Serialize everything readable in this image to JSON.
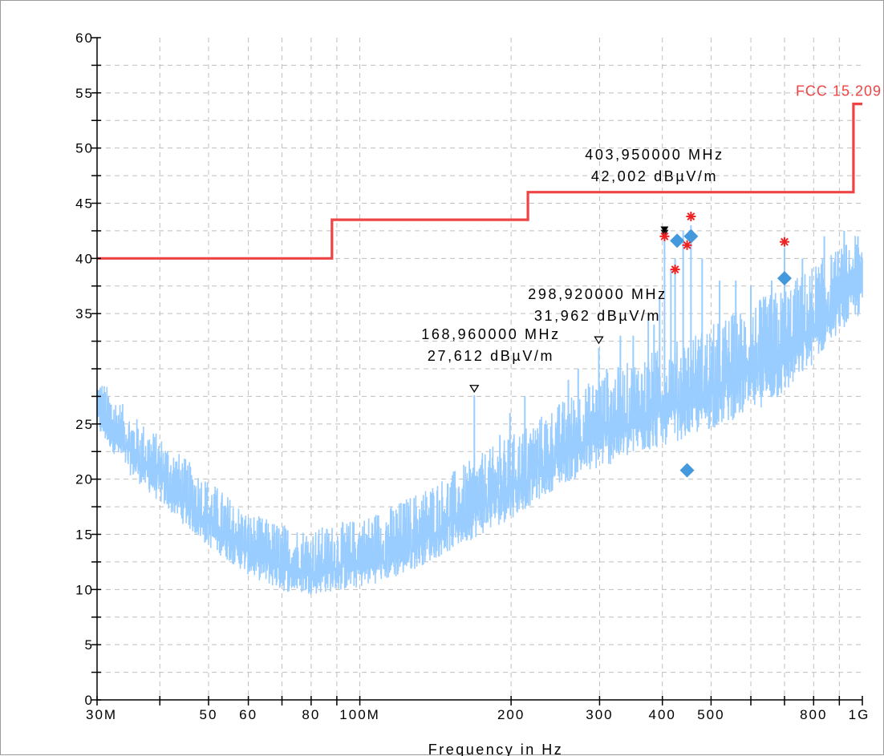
{
  "chart_data": {
    "type": "line",
    "title": "",
    "xlabel": "Frequency in Hz",
    "ylabel": "",
    "x_scale": "log",
    "xlim": [
      30000000,
      1000000000
    ],
    "ylim": [
      0,
      60
    ],
    "grid": true,
    "x_ticks": [
      {
        "value": 30000000,
        "label": "30M"
      },
      {
        "value": 50000000,
        "label": "50"
      },
      {
        "value": 60000000,
        "label": "60"
      },
      {
        "value": 80000000,
        "label": "80"
      },
      {
        "value": 100000000,
        "label": "100M"
      },
      {
        "value": 200000000,
        "label": "200"
      },
      {
        "value": 300000000,
        "label": "300"
      },
      {
        "value": 400000000,
        "label": "400"
      },
      {
        "value": 500000000,
        "label": "500"
      },
      {
        "value": 800000000,
        "label": "800"
      },
      {
        "value": 1000000000,
        "label": "1G"
      }
    ],
    "y_ticks": [
      {
        "value": 0,
        "label": "0"
      },
      {
        "value": 5,
        "label": "5"
      },
      {
        "value": 10,
        "label": "10"
      },
      {
        "value": 15,
        "label": "15"
      },
      {
        "value": 20,
        "label": "20"
      },
      {
        "value": 25,
        "label": "25"
      },
      {
        "value": 35,
        "label": "35"
      },
      {
        "value": 40,
        "label": "40"
      },
      {
        "value": 45,
        "label": "45"
      },
      {
        "value": 50,
        "label": "50"
      },
      {
        "value": 55,
        "label": "55"
      },
      {
        "value": 60,
        "label": "60"
      }
    ],
    "limit_line": {
      "name": "FCC 15.209",
      "color": "#ee4444",
      "points": [
        [
          30000000,
          40.0
        ],
        [
          88000000,
          40.0
        ],
        [
          88000000,
          43.5
        ],
        [
          216000000,
          43.5
        ],
        [
          216000000,
          46.0
        ],
        [
          960000000,
          46.0
        ],
        [
          960000000,
          54.0
        ],
        [
          1000000000,
          54.0
        ]
      ]
    },
    "spectrum": {
      "color": "#99ccff",
      "floor_envelope": [
        [
          30000000,
          24
        ],
        [
          35000000,
          20
        ],
        [
          40000000,
          17.5
        ],
        [
          50000000,
          13.5
        ],
        [
          60000000,
          11
        ],
        [
          70000000,
          9.5
        ],
        [
          80000000,
          9.2
        ],
        [
          100000000,
          9.8
        ],
        [
          120000000,
          10.8
        ],
        [
          150000000,
          13
        ],
        [
          200000000,
          16
        ],
        [
          250000000,
          19
        ],
        [
          300000000,
          20.5
        ],
        [
          400000000,
          22.5
        ],
        [
          500000000,
          24
        ],
        [
          600000000,
          25.5
        ],
        [
          700000000,
          27
        ],
        [
          800000000,
          30
        ],
        [
          900000000,
          33
        ],
        [
          1000000000,
          34.5
        ]
      ],
      "top_envelope": [
        [
          30000000,
          29.5
        ],
        [
          35000000,
          26
        ],
        [
          40000000,
          24
        ],
        [
          50000000,
          20
        ],
        [
          60000000,
          17
        ],
        [
          70000000,
          16
        ],
        [
          80000000,
          15.5
        ],
        [
          100000000,
          16.5
        ],
        [
          120000000,
          18
        ],
        [
          150000000,
          20.5
        ],
        [
          200000000,
          24
        ],
        [
          250000000,
          27
        ],
        [
          300000000,
          29.5
        ],
        [
          400000000,
          32
        ],
        [
          500000000,
          34
        ],
        [
          600000000,
          36
        ],
        [
          700000000,
          37.5
        ],
        [
          800000000,
          39.5
        ],
        [
          900000000,
          41
        ],
        [
          1000000000,
          42.5
        ]
      ],
      "spikes": [
        [
          169000000,
          27.6
        ],
        [
          190000000,
          24
        ],
        [
          199000000,
          26
        ],
        [
          213000000,
          27.5
        ],
        [
          260000000,
          29
        ],
        [
          272000000,
          30
        ],
        [
          299000000,
          31.9
        ],
        [
          310000000,
          30
        ],
        [
          330000000,
          33
        ],
        [
          350000000,
          33
        ],
        [
          375000000,
          35
        ],
        [
          385000000,
          34
        ],
        [
          395000000,
          36.5
        ],
        [
          404000000,
          42
        ],
        [
          416000000,
          39
        ],
        [
          424000000,
          40
        ],
        [
          440000000,
          42.5
        ],
        [
          456000000,
          43
        ],
        [
          480000000,
          40
        ],
        [
          520000000,
          38
        ],
        [
          560000000,
          38
        ],
        [
          600000000,
          37.5
        ],
        [
          660000000,
          38
        ],
        [
          700000000,
          41
        ],
        [
          760000000,
          40
        ],
        [
          840000000,
          42
        ],
        [
          920000000,
          42.5
        ],
        [
          980000000,
          42
        ]
      ]
    },
    "peak_markers": [
      {
        "freq": 404000000,
        "level": 42.3,
        "color": "#1a1a1a"
      },
      {
        "freq": 404000000,
        "level": 42.0,
        "color": "#ee2222"
      },
      {
        "freq": 424000000,
        "level": 39.0,
        "color": "#ee2222"
      },
      {
        "freq": 448000000,
        "level": 41.2,
        "color": "#ee2222"
      },
      {
        "freq": 456000000,
        "level": 43.8,
        "color": "#ee2222"
      },
      {
        "freq": 700000000,
        "level": 41.5,
        "color": "#ee2222"
      }
    ],
    "final_measurements": [
      {
        "freq": 428000000,
        "level": 41.6,
        "color": "#4499dd"
      },
      {
        "freq": 456000000,
        "level": 42.0,
        "color": "#4499dd"
      },
      {
        "freq": 448000000,
        "level": 20.8,
        "color": "#4499dd"
      },
      {
        "freq": 700000000,
        "level": 38.2,
        "color": "#4499dd"
      }
    ],
    "annotations": [
      {
        "freq": 403950000,
        "level": 42.002,
        "freq_text": "403,950000 MHz",
        "level_text": "42,002 dBµV/m",
        "marker": "filled",
        "marker_level": 42.6
      },
      {
        "freq": 298920000,
        "level": 31.962,
        "freq_text": "298,920000 MHz",
        "level_text": "31,962 dBµV/m",
        "marker": "open",
        "marker_level": 32.6
      },
      {
        "freq": 168960000,
        "level": 27.612,
        "freq_text": "168,960000 MHz",
        "level_text": "27,612 dBµV/m",
        "marker": "open",
        "marker_level": 28.2
      }
    ]
  }
}
